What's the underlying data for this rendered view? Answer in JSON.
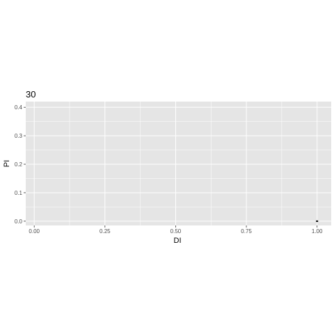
{
  "chart_data": {
    "type": "scatter",
    "title": "30",
    "xlabel": "DI",
    "ylabel": "PI",
    "xlim": [
      -0.03,
      1.05
    ],
    "ylim": [
      -0.015,
      0.42
    ],
    "x_ticks": [
      0.0,
      0.25,
      0.5,
      0.75,
      1.0
    ],
    "x_tick_labels": [
      "0.00",
      "0.25",
      "0.50",
      "0.75",
      "1.00"
    ],
    "y_ticks": [
      0.0,
      0.1,
      0.2,
      0.3,
      0.4
    ],
    "y_tick_labels": [
      "0.0",
      "0.1",
      "0.2",
      "0.3",
      "0.4"
    ],
    "grid": true,
    "points": [
      {
        "x": 1.0,
        "y": 0.0
      }
    ],
    "colors": {
      "panel_background": "#e5e5e5",
      "grid_major": "#ffffff",
      "point": "#000000"
    }
  }
}
